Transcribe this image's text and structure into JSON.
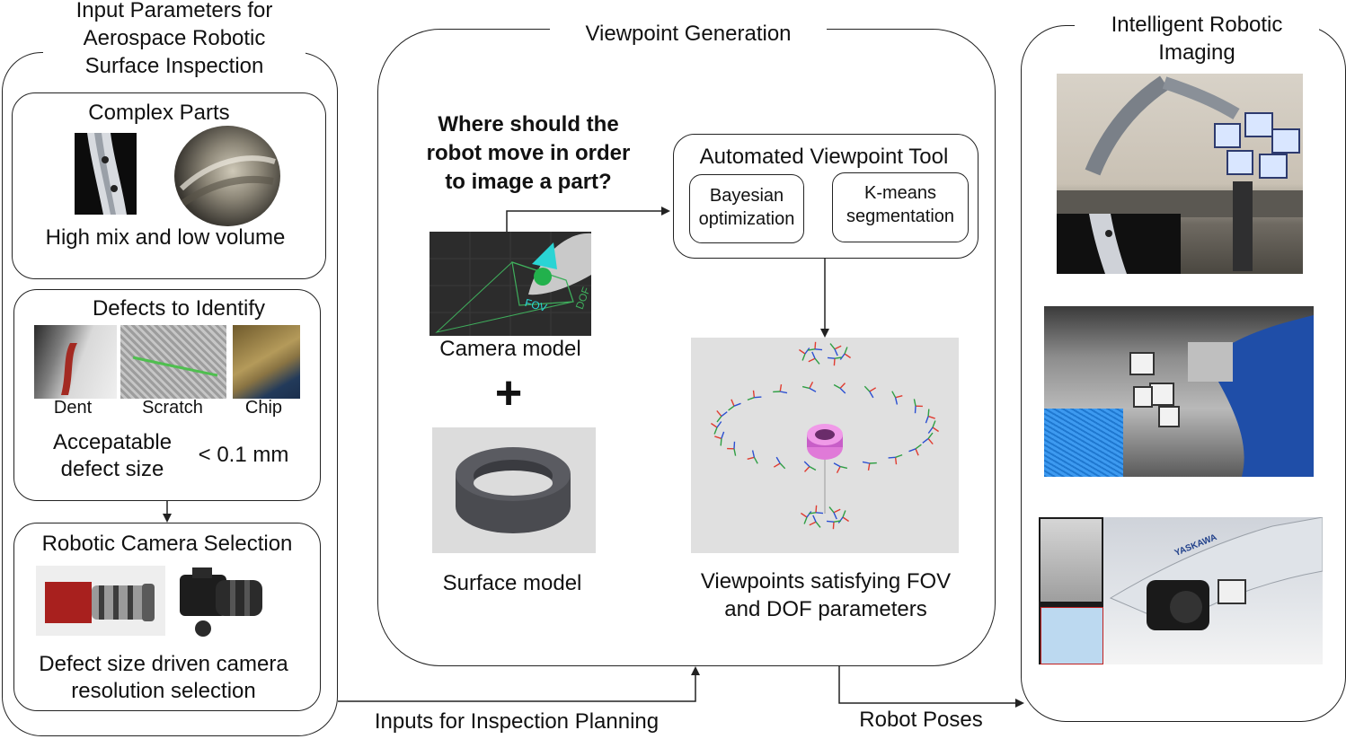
{
  "left_panel": {
    "title": "Input Parameters for\nAerospace Robotic\nSurface Inspection",
    "complex_parts": {
      "heading": "Complex Parts",
      "caption": "High mix and low volume"
    },
    "defects": {
      "heading": "Defects to Identify",
      "items": [
        "Dent",
        "Scratch",
        "Chip"
      ],
      "size_label": "Accepatable\ndefect size",
      "size_value": "< 0.1 mm"
    },
    "camera_selection": {
      "heading": "Robotic Camera Selection",
      "caption": "Defect size driven camera\nresolution selection"
    }
  },
  "middle_panel": {
    "title": "Viewpoint Generation",
    "question": "Where should the\nrobot move in order\nto image a part?",
    "camera_model_label": "Camera model",
    "camera_tags": [
      "FOV",
      "DOF"
    ],
    "plus": "+",
    "surface_model_label": "Surface model",
    "tool": {
      "heading": "Automated Viewpoint Tool",
      "method_a": "Bayesian\noptimization",
      "method_b": "K-means\nsegmentation"
    },
    "viewpoints_label": "Viewpoints satisfying FOV\nand DOF parameters"
  },
  "right_panel": {
    "title": "Intelligent Robotic\nImaging",
    "robot_brand": "YASKAWA"
  },
  "connectors": {
    "inputs_label": "Inputs for Inspection Planning",
    "poses_label": "Robot Poses"
  }
}
